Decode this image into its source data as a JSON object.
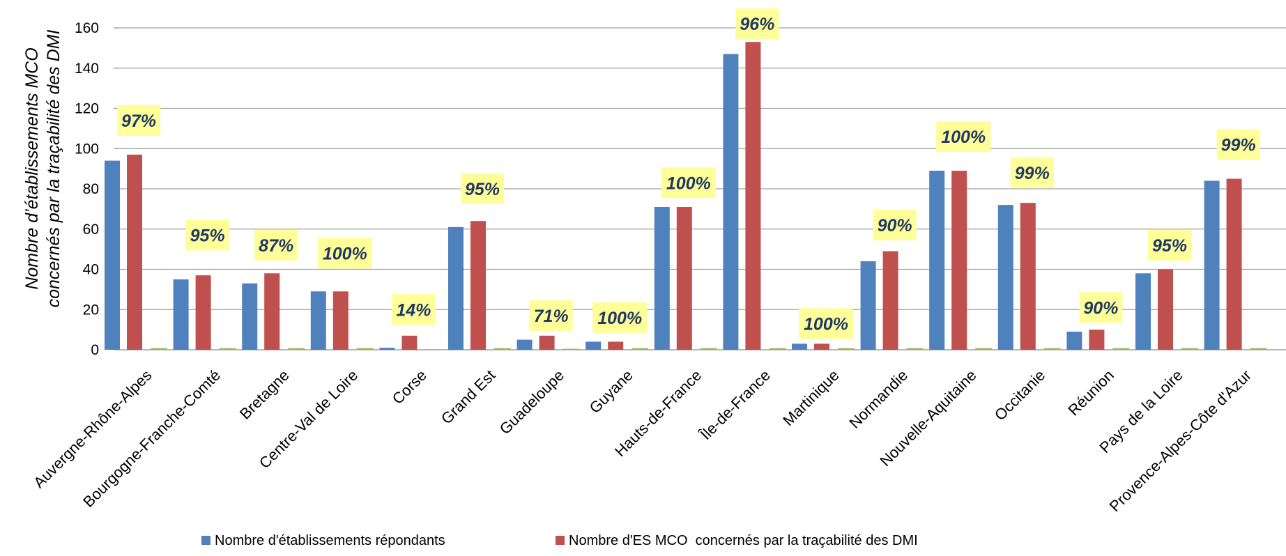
{
  "chart_data": {
    "type": "bar",
    "ylabel_line1": "Nombre d’établissements MCO",
    "ylabel_line2": "concernés par la traçabilité des DMI",
    "ylim": [
      0,
      160
    ],
    "yticks": [
      0,
      20,
      40,
      60,
      80,
      100,
      120,
      140,
      160
    ],
    "grid": true,
    "legend_position": "bottom",
    "categories": [
      "Auvergne-Rhône-Alpes",
      "Bourgogne-Franche-Comté",
      "Bretagne",
      "Centre-Val de Loire",
      "Corse",
      "Grand Est",
      "Guadeloupe",
      "Guyane",
      "Hauts-de-France",
      "Île-de-France",
      "Martinique",
      "Normandie",
      "Nouvelle-Aquitaine",
      "Occitanie",
      "Réunion",
      "Pays de la Loire",
      "Provence-Alpes-Côte d'Azur"
    ],
    "series": [
      {
        "name": "Nombre d'établissements répondants",
        "color": "#4f81bd",
        "values": [
          94,
          35,
          33,
          29,
          1,
          61,
          5,
          4,
          71,
          147,
          3,
          44,
          89,
          72,
          9,
          38,
          84
        ]
      },
      {
        "name": "Nombre d'ES MCO  concernés par la traçabilité des DMI",
        "color": "#c0504d",
        "values": [
          97,
          37,
          38,
          29,
          7,
          64,
          7,
          4,
          71,
          153,
          3,
          49,
          89,
          73,
          10,
          40,
          85
        ]
      },
      {
        "color": "#9bbb59",
        "values": [
          0.8,
          0.8,
          0.8,
          0.8,
          0.3,
          0.8,
          0.5,
          0.8,
          0.8,
          0.8,
          0.8,
          0.8,
          0.8,
          0.8,
          0.8,
          0.8,
          0.8
        ]
      }
    ],
    "annotations": [
      "97%",
      "95%",
      "87%",
      "100%",
      "14%",
      "95%",
      "71%",
      "100%",
      "100%",
      "96%",
      "100%",
      "90%",
      "100%",
      "99%",
      "90%",
      "95%",
      "99%"
    ],
    "annotation_levels": [
      114,
      57,
      52,
      48,
      20,
      80,
      17,
      16,
      83,
      162,
      13,
      62,
      106,
      88,
      21,
      52,
      102
    ],
    "annotation_bg": "#ffff99",
    "annotation_color": "#1f3864"
  }
}
